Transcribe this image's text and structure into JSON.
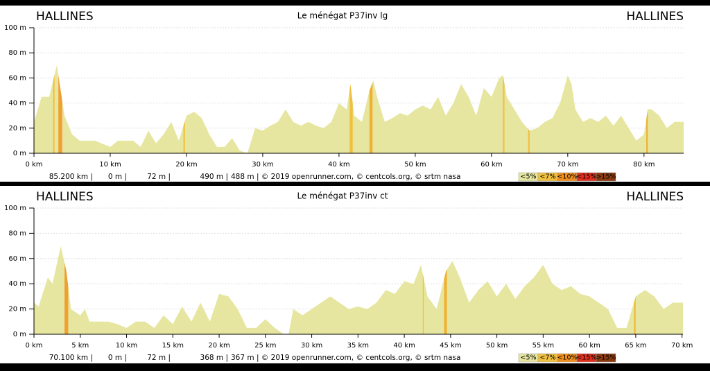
{
  "chart_data": [
    {
      "type": "area",
      "title": "Le ménégat P37inv lg",
      "start_label": "HALLINES",
      "end_label": "HALLINES",
      "color": "#e6e6a0",
      "x": [
        0,
        1,
        2,
        3,
        4,
        5,
        6,
        8,
        10,
        11,
        13,
        14,
        15,
        16,
        17,
        18,
        19,
        20,
        21,
        22,
        23,
        24,
        25,
        26,
        27,
        28,
        29,
        30,
        31,
        32,
        33,
        34,
        35,
        36,
        37,
        38,
        39,
        40,
        41,
        41.5,
        42,
        43,
        44,
        44.5,
        45,
        46,
        47,
        48,
        49,
        50,
        51,
        52,
        53,
        54,
        55,
        56,
        57,
        58,
        59,
        60,
        61,
        61.5,
        62,
        63,
        64,
        65,
        66,
        67,
        68,
        69,
        70,
        70.5,
        71,
        72,
        73,
        74,
        75,
        76,
        77,
        78,
        79,
        80,
        80.5,
        81,
        82,
        83,
        84,
        85.2
      ],
      "values": [
        25,
        45,
        45,
        70,
        30,
        15,
        10,
        10,
        5,
        10,
        10,
        5,
        18,
        8,
        15,
        25,
        10,
        30,
        33,
        28,
        15,
        5,
        5,
        12,
        2,
        0,
        20,
        18,
        22,
        25,
        35,
        25,
        22,
        25,
        22,
        20,
        25,
        40,
        35,
        55,
        30,
        25,
        50,
        58,
        45,
        25,
        28,
        32,
        30,
        35,
        38,
        35,
        45,
        30,
        40,
        55,
        45,
        30,
        52,
        45,
        60,
        62,
        45,
        35,
        25,
        18,
        20,
        25,
        28,
        40,
        62,
        55,
        35,
        25,
        28,
        25,
        30,
        22,
        30,
        20,
        10,
        15,
        35,
        35,
        30,
        20,
        25,
        25
      ],
      "xlim": [
        0,
        85.2
      ],
      "ylim": [
        0,
        100
      ],
      "xticks": [
        {
          "value": 0,
          "label": "0 km"
        },
        {
          "value": 10,
          "label": "10 km"
        },
        {
          "value": 20,
          "label": "20 km"
        },
        {
          "value": 30,
          "label": "30 km"
        },
        {
          "value": 40,
          "label": "40 km"
        },
        {
          "value": 50,
          "label": "50 km"
        },
        {
          "value": 60,
          "label": "60 km"
        },
        {
          "value": 70,
          "label": "70 km"
        },
        {
          "value": 80,
          "label": "80 km"
        }
      ],
      "yticks": [
        {
          "value": 0,
          "label": "0 m"
        },
        {
          "value": 20,
          "label": "20 m"
        },
        {
          "value": 40,
          "label": "40 m"
        },
        {
          "value": 60,
          "label": "60 m"
        },
        {
          "value": 80,
          "label": "80 m"
        },
        {
          "value": 100,
          "label": "100 m"
        }
      ],
      "grid": true,
      "steep_segments": [
        {
          "x": [
            2.5,
            2.7
          ],
          "color": "#f0c040"
        },
        {
          "x": [
            3.2,
            3.7
          ],
          "color": "#f0a030"
        },
        {
          "x": [
            19.6,
            19.8
          ],
          "color": "#f0c040"
        },
        {
          "x": [
            41.4,
            41.8
          ],
          "color": "#f0c040"
        },
        {
          "x": [
            44,
            44.4
          ],
          "color": "#f0b030"
        },
        {
          "x": [
            61.5,
            61.7
          ],
          "color": "#f0c040"
        },
        {
          "x": [
            64.8,
            65
          ],
          "color": "#f0c040"
        },
        {
          "x": [
            80.3,
            80.5
          ],
          "color": "#f0b030"
        }
      ],
      "footer": [
        "85.200 km |",
        "0 m |",
        "72 m |",
        "490 m |",
        "488 m | © 2019 openrunner.com, © centcols.org, © srtm nasa"
      ],
      "legend": [
        {
          "label": "<5%",
          "color": "#e6e6a0"
        },
        {
          "label": "<7%",
          "color": "#f0c040"
        },
        {
          "label": "<10%",
          "color": "#f09020"
        },
        {
          "label": "<15%",
          "color": "#e03020"
        },
        {
          "label": ">15%",
          "color": "#8b3a10"
        }
      ]
    },
    {
      "type": "area",
      "title": "Le ménégat P37inv ct",
      "start_label": "HALLINES",
      "end_label": "HALLINES",
      "color": "#e6e6a0",
      "x": [
        0,
        0.5,
        1.5,
        2,
        2.9,
        3.5,
        4,
        5,
        5.5,
        6,
        7,
        8,
        9,
        10,
        11,
        12,
        13,
        14,
        15,
        16,
        17,
        18,
        19,
        20,
        21,
        22,
        23,
        24,
        25,
        26,
        27,
        27.5,
        28,
        29,
        30,
        31,
        32,
        33,
        34,
        35,
        36,
        37,
        38,
        39,
        40,
        41,
        41.8,
        42.5,
        43.5,
        44.5,
        45.2,
        46,
        47,
        48,
        49,
        50,
        51,
        52,
        53,
        54,
        55,
        56,
        57,
        58,
        59,
        60,
        61,
        62,
        63,
        64,
        65,
        66,
        67,
        68,
        69,
        70.1
      ],
      "values": [
        25,
        22,
        45,
        40,
        70,
        50,
        20,
        15,
        20,
        10,
        10,
        10,
        8,
        5,
        10,
        10,
        5,
        15,
        8,
        22,
        10,
        25,
        10,
        32,
        30,
        20,
        5,
        5,
        12,
        5,
        0,
        0,
        20,
        15,
        20,
        25,
        30,
        25,
        20,
        22,
        20,
        25,
        35,
        32,
        42,
        40,
        55,
        30,
        20,
        50,
        58,
        45,
        25,
        35,
        42,
        30,
        40,
        28,
        38,
        45,
        55,
        40,
        35,
        38,
        32,
        30,
        25,
        20,
        5,
        5,
        30,
        35,
        30,
        20,
        25,
        25
      ],
      "xlim": [
        0,
        70.1
      ],
      "ylim": [
        0,
        100
      ],
      "xticks": [
        {
          "value": 0,
          "label": "0 km"
        },
        {
          "value": 5,
          "label": "5 km"
        },
        {
          "value": 10,
          "label": "10 km"
        },
        {
          "value": 15,
          "label": "15 km"
        },
        {
          "value": 20,
          "label": "20 km"
        },
        {
          "value": 25,
          "label": "25 km"
        },
        {
          "value": 30,
          "label": "30 km"
        },
        {
          "value": 35,
          "label": "35 km"
        },
        {
          "value": 40,
          "label": "40 km"
        },
        {
          "value": 45,
          "label": "45 km"
        },
        {
          "value": 50,
          "label": "50 km"
        },
        {
          "value": 55,
          "label": "55 km"
        },
        {
          "value": 60,
          "label": "60 km"
        },
        {
          "value": 65,
          "label": "65 km"
        },
        {
          "value": 70,
          "label": "70 km"
        }
      ],
      "yticks": [
        {
          "value": 0,
          "label": "0 m"
        },
        {
          "value": 20,
          "label": "20 m"
        },
        {
          "value": 40,
          "label": "40 m"
        },
        {
          "value": 60,
          "label": "60 m"
        },
        {
          "value": 80,
          "label": "80 m"
        },
        {
          "value": 100,
          "label": "100 m"
        }
      ],
      "grid": true,
      "steep_segments": [
        {
          "x": [
            3.3,
            3.7
          ],
          "color": "#f0a030"
        },
        {
          "x": [
            42,
            42.1
          ],
          "color": "#f0c040"
        },
        {
          "x": [
            44.3,
            44.6
          ],
          "color": "#f0b030"
        },
        {
          "x": [
            64.8,
            65
          ],
          "color": "#f0c040"
        }
      ],
      "footer": [
        "70.100 km |",
        "0 m |",
        "72 m |",
        "368 m |",
        "367 m | © 2019 openrunner.com, © centcols.org, © srtm nasa"
      ],
      "legend": [
        {
          "label": "<5%",
          "color": "#e6e6a0"
        },
        {
          "label": "<7%",
          "color": "#f0c040"
        },
        {
          "label": "<10%",
          "color": "#f09020"
        },
        {
          "label": "<15%",
          "color": "#e03020"
        },
        {
          "label": ">15%",
          "color": "#8b3a10"
        }
      ]
    }
  ]
}
